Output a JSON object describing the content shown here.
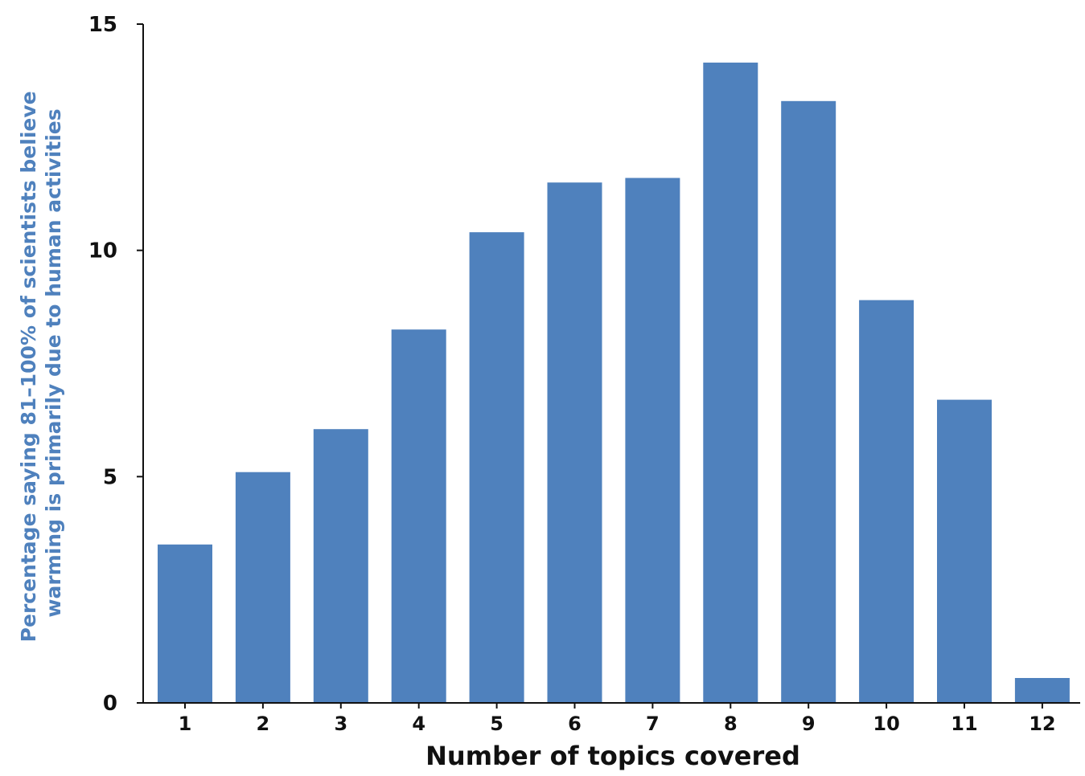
{
  "chart_data": {
    "type": "bar",
    "title": "",
    "xlabel": "Number of topics covered",
    "ylabel_lines": [
      "Percentage saying  81–100% of scientists believe",
      "warming is primarily due to human activities"
    ],
    "categories": [
      "1",
      "2",
      "3",
      "4",
      "5",
      "6",
      "7",
      "8",
      "9",
      "10",
      "11",
      "12"
    ],
    "values": [
      3.5,
      5.1,
      6.05,
      8.25,
      10.4,
      11.5,
      11.6,
      14.15,
      13.3,
      8.9,
      6.7,
      0.55
    ],
    "ylim": [
      0,
      15
    ],
    "yticks": [
      "0",
      "5",
      "10",
      "15"
    ],
    "grid": false,
    "legend": "none",
    "colors": {
      "bar": "#4f81bd",
      "axis": "#111111",
      "ylabel": "#4f81bd"
    }
  }
}
